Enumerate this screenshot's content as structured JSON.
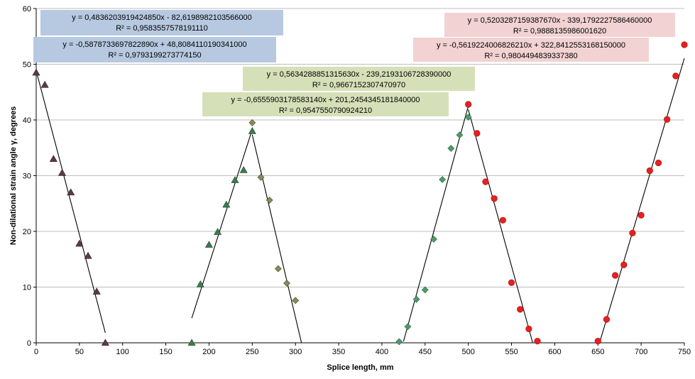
{
  "chart_data": {
    "type": "scatter",
    "title": "",
    "xlabel": "Splice length, mm",
    "ylabel": "Non-dilational strain angle γ, degrees",
    "xlim": [
      0,
      750
    ],
    "ylim": [
      0,
      60
    ],
    "x_ticks": [
      "0",
      "50",
      "100",
      "150",
      "200",
      "250",
      "300",
      "350",
      "400",
      "450",
      "500",
      "550",
      "600",
      "650",
      "700",
      "750"
    ],
    "y_ticks": [
      "0",
      "10",
      "20",
      "30",
      "40",
      "50",
      "60"
    ],
    "grid": "horizontal",
    "series": [
      {
        "marker": "triangle",
        "fill": "#5b3a4a",
        "stroke": "#2a1a22",
        "points": [
          [
            0,
            48.5
          ],
          [
            10,
            46.3
          ],
          [
            20,
            33
          ],
          [
            30,
            30.5
          ],
          [
            40,
            27
          ],
          [
            50,
            17.8
          ],
          [
            60,
            15.6
          ],
          [
            70,
            9.2
          ],
          [
            80,
            0
          ]
        ]
      },
      {
        "marker": "triangle",
        "fill": "#3e7a50",
        "stroke": "#1f4a2c",
        "points": [
          [
            180,
            0
          ],
          [
            190,
            10.5
          ],
          [
            200,
            17.6
          ],
          [
            210,
            19.9
          ],
          [
            220,
            24.8
          ],
          [
            230,
            29.2
          ],
          [
            240,
            31
          ],
          [
            250,
            38
          ]
        ]
      },
      {
        "marker": "diamond",
        "fill": "#8a8a5a",
        "stroke": "#4a4a2c",
        "points": [
          [
            250,
            39.5
          ],
          [
            260,
            29.7
          ],
          [
            270,
            25.6
          ],
          [
            280,
            13.3
          ],
          [
            290,
            10.7
          ],
          [
            300,
            7.6
          ]
        ]
      },
      {
        "marker": "diamond",
        "fill": "#4f9a6a",
        "stroke": "#2b6e44",
        "points": [
          [
            420,
            0.2
          ],
          [
            430,
            2.9
          ],
          [
            440,
            7.8
          ],
          [
            450,
            9.5
          ],
          [
            460,
            18.6
          ],
          [
            470,
            29.3
          ],
          [
            480,
            34.9
          ],
          [
            490,
            37.3
          ],
          [
            500,
            40.5
          ]
        ]
      },
      {
        "marker": "circle",
        "fill": "#e8201e",
        "stroke": "#a01010",
        "points": [
          [
            500,
            42.8
          ],
          [
            510,
            37.6
          ],
          [
            520,
            28.9
          ],
          [
            530,
            25.9
          ],
          [
            540,
            22
          ],
          [
            550,
            10.8
          ],
          [
            560,
            6
          ],
          [
            570,
            2.5
          ],
          [
            580,
            0.3
          ]
        ]
      },
      {
        "marker": "circle",
        "fill": "#e8201e",
        "stroke": "#a01010",
        "points": [
          [
            650,
            0.3
          ],
          [
            660,
            4.2
          ],
          [
            670,
            12.1
          ],
          [
            680,
            14
          ],
          [
            690,
            19.7
          ],
          [
            700,
            22.9
          ],
          [
            710,
            30.9
          ],
          [
            720,
            32.3
          ],
          [
            730,
            40.1
          ],
          [
            740,
            47.9
          ],
          [
            750,
            53.5
          ]
        ]
      }
    ],
    "trendlines": [
      {
        "slope": -0.58787336978229,
        "intercept": 48.8084110190341,
        "x_range": [
          0,
          80
        ]
      },
      {
        "slope": 0.483620391942485,
        "intercept": -82.6198982103566,
        "x_range": [
          180,
          250
        ]
      },
      {
        "slope": -0.655590317858314,
        "intercept": 201.245434518184,
        "x_range": [
          250,
          307
        ]
      },
      {
        "slope": 0.563428885131563,
        "intercept": -239.219310672839,
        "x_range": [
          425,
          500
        ]
      },
      {
        "slope": -0.56192240068262,
        "intercept": 322.84125536815,
        "x_range": [
          500,
          575
        ]
      },
      {
        "slope": 0.520328715938767,
        "intercept": -339.179222758646,
        "x_range": [
          652,
          750
        ]
      }
    ],
    "annotations": [
      {
        "eq": "y = 0,4836203919424850x  - 82,6198982103566000",
        "r2": "R² = 0,9583557578191110",
        "bg": "#b7c9e0"
      },
      {
        "eq": "y = -0,5878733697822890x  + 48,8084110190341000",
        "r2": "R² = 0,9793199273774150",
        "bg": "#b7c9e0"
      },
      {
        "eq": "y = 0,5634288851315630x  - 239,2193106728390000",
        "r2": "R² = 0,9667152307470970",
        "bg": "#d5e0b8"
      },
      {
        "eq": "y = -0,6555903178583140x  + 201,2454345181840000",
        "r2": "R² = 0,9547550790924210",
        "bg": "#d5e0b8"
      },
      {
        "eq": "y = 0,5203287159387670x  - 339,1792227586460000",
        "r2": "R² = 0,9888135986001620",
        "bg": "#f2d2d2"
      },
      {
        "eq": "y = -0,5619224006826210x  + 322,8412553168150000",
        "r2": "R² = 0,9804494839337380",
        "bg": "#f2d2d2"
      }
    ]
  }
}
